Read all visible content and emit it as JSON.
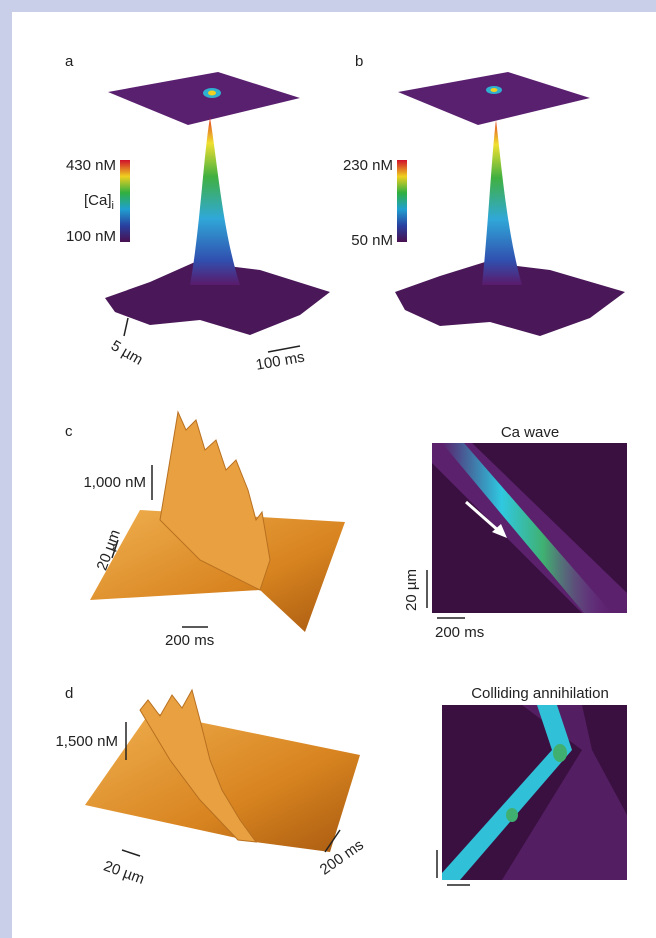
{
  "panels": [
    {
      "label": "a",
      "colorbar_max": "430 nM",
      "colorbar_name": "[Ca]",
      "colorbar_name_subscript": "i",
      "colorbar_min": "100 nM",
      "scale_space": "5 µm",
      "scale_time": "100 ms"
    },
    {
      "label": "b",
      "colorbar_max": "230 nM",
      "colorbar_min": "50 nM"
    },
    {
      "label": "c",
      "scale_amplitude": "1,000 nM",
      "scale_space": "20 µm",
      "scale_time": "200 ms",
      "image_title": "Ca wave",
      "image_scale_space": "20 µm",
      "image_scale_time": "200 ms"
    },
    {
      "label": "d",
      "scale_amplitude": "1,500 nM",
      "scale_space": "20 µm",
      "scale_time": "200 ms",
      "image_title": "Colliding annihilation"
    }
  ]
}
